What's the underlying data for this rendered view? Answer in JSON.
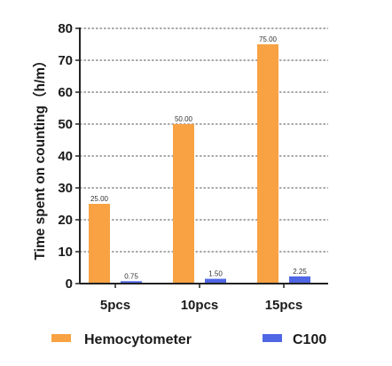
{
  "chart_data": {
    "type": "bar",
    "categories": [
      "5pcs",
      "10pcs",
      "15pcs"
    ],
    "series": [
      {
        "name": "Hemocytometer",
        "values": [
          25.0,
          50.0,
          75.0
        ],
        "labels": [
          "25.00",
          "50.00",
          "75.00"
        ],
        "color": "#F9A243"
      },
      {
        "name": "C100",
        "values": [
          0.75,
          1.5,
          2.25
        ],
        "labels": [
          "0.75",
          "1.50",
          "2.25"
        ],
        "color": "#4F66E5"
      }
    ],
    "ylabel": "Time spent on counting（h/m）",
    "xlabel": "",
    "ylim": [
      0,
      80
    ],
    "yticks": [
      0,
      10,
      20,
      30,
      40,
      50,
      60,
      70,
      80
    ],
    "grid": "dashed horizontal",
    "legend": "bottom"
  }
}
